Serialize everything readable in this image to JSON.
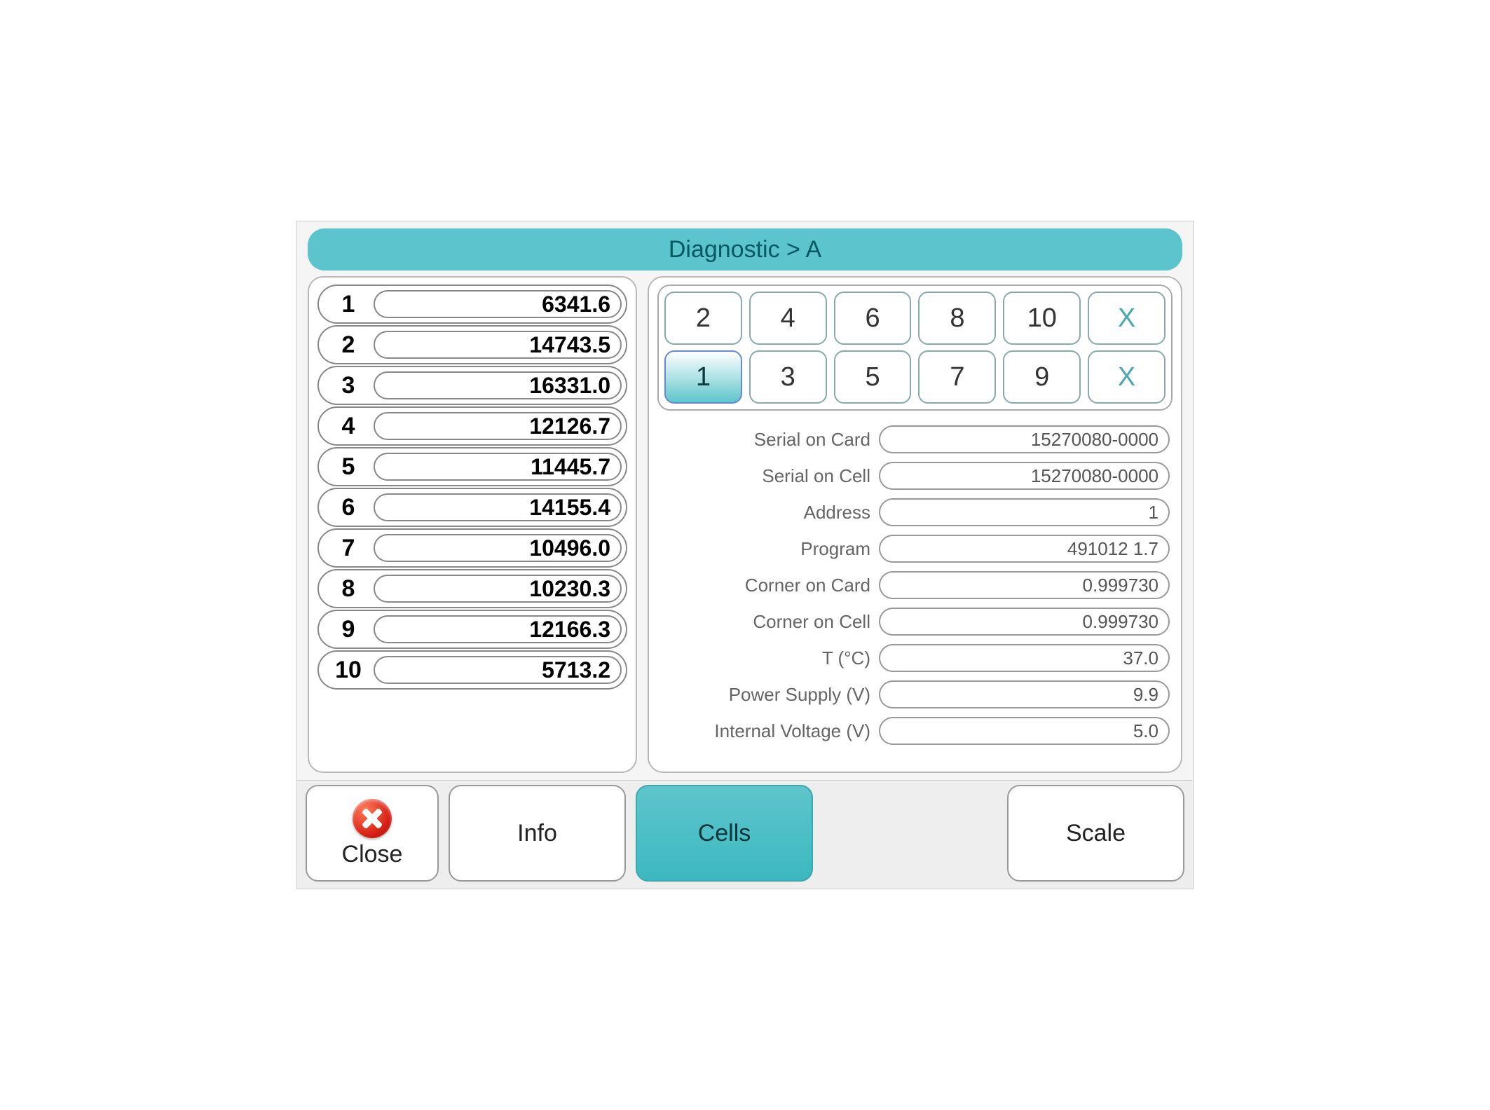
{
  "colors": {
    "header_bg": "#5bc4cc",
    "header_text": "#005860",
    "panel_bg": "#ffffff",
    "panel_border": "#b8b8b8",
    "screen_bg": "#f5f5f5",
    "key_selected_bg_top": "#ffffff",
    "key_selected_bg_bottom": "#5ec5cc",
    "key_selected_border": "#6a87d4",
    "close_gradient_a": "#ff7a5a",
    "close_gradient_b": "#d62015",
    "active_tab_bg": "#3db8c0"
  },
  "header": {
    "title": "Diagnostic > A"
  },
  "readings": [
    {
      "idx": "1",
      "value": "6341.6"
    },
    {
      "idx": "2",
      "value": "14743.5"
    },
    {
      "idx": "3",
      "value": "16331.0"
    },
    {
      "idx": "4",
      "value": "12126.7"
    },
    {
      "idx": "5",
      "value": "11445.7"
    },
    {
      "idx": "6",
      "value": "14155.4"
    },
    {
      "idx": "7",
      "value": "10496.0"
    },
    {
      "idx": "8",
      "value": "10230.3"
    },
    {
      "idx": "9",
      "value": "12166.3"
    },
    {
      "idx": "10",
      "value": "5713.2"
    }
  ],
  "keypad": {
    "row_top": [
      "2",
      "4",
      "6",
      "8",
      "10",
      "X"
    ],
    "row_bottom": [
      "1",
      "3",
      "5",
      "7",
      "9",
      "X"
    ],
    "selected": "1"
  },
  "details": [
    {
      "label": "Serial on Card",
      "value": "15270080-0000"
    },
    {
      "label": "Serial on Cell",
      "value": "15270080-0000"
    },
    {
      "label": "Address",
      "value": "1"
    },
    {
      "label": "Program",
      "value": "491012 1.7"
    },
    {
      "label": "Corner on Card",
      "value": "0.999730"
    },
    {
      "label": "Corner on Cell",
      "value": "0.999730"
    },
    {
      "label": "T (°C)",
      "value": "37.0"
    },
    {
      "label": "Power Supply (V)",
      "value": "9.9"
    },
    {
      "label": "Internal Voltage (V)",
      "value": "5.0"
    }
  ],
  "footer": {
    "close": "Close",
    "info": "Info",
    "cells": "Cells",
    "scale": "Scale",
    "active": "cells"
  }
}
